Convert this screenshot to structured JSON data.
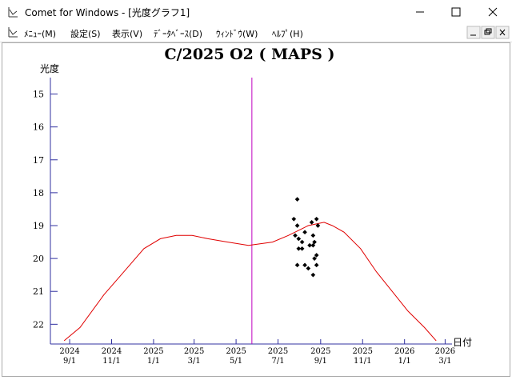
{
  "window": {
    "title": "Comet for Windows - [光度グラフ1]"
  },
  "menu": [
    "ﾒﾆｭｰ(M)",
    "設定(S)",
    "表示(V)",
    "ﾃﾞｰﾀﾍﾞｰｽ(D)",
    "ｳｨﾝﾄﾞｳ(W)",
    "ﾍﾙﾌﾟ(H)"
  ],
  "chart_data": {
    "type": "line",
    "title": "C/2025 O2 ( MAPS )",
    "y_label": "光度",
    "x_label": "日付",
    "xlim": [
      "2024-08-04",
      "2026-03-11"
    ],
    "ylim": [
      22.6,
      14.5
    ],
    "yticks": [
      15,
      16,
      17,
      18,
      19,
      20,
      21,
      22
    ],
    "xticks": [
      {
        "value": "2024-09-01",
        "label": [
          "2024",
          "9/1"
        ]
      },
      {
        "value": "2024-11-01",
        "label": [
          "2024",
          "11/1"
        ]
      },
      {
        "value": "2025-01-01",
        "label": [
          "2025",
          "1/1"
        ]
      },
      {
        "value": "2025-03-01",
        "label": [
          "2025",
          "3/1"
        ]
      },
      {
        "value": "2025-05-01",
        "label": [
          "2025",
          "5/1"
        ]
      },
      {
        "value": "2025-07-01",
        "label": [
          "2025",
          "7/1"
        ]
      },
      {
        "value": "2025-09-01",
        "label": [
          "2025",
          "9/1"
        ]
      },
      {
        "value": "2025-11-01",
        "label": [
          "2025",
          "11/1"
        ]
      },
      {
        "value": "2026-01-01",
        "label": [
          "2026",
          "1/1"
        ]
      },
      {
        "value": "2026-03-01",
        "label": [
          "2026",
          "3/1"
        ]
      }
    ],
    "current_date": "2025-05-24",
    "current_color": "#c000c0",
    "series": [
      {
        "type": "line",
        "color": "#e00000",
        "x": [
          "2024-08-24",
          "2024-09-16",
          "2024-10-21",
          "2024-11-19",
          "2024-12-18",
          "2025-01-11",
          "2025-02-03",
          "2025-02-26",
          "2025-03-21",
          "2025-04-19",
          "2025-05-19",
          "2025-06-23",
          "2025-07-16",
          "2025-08-14",
          "2025-09-06",
          "2025-09-18",
          "2025-10-05",
          "2025-10-29",
          "2025-11-21",
          "2025-12-14",
          "2026-01-06",
          "2026-01-30",
          "2026-02-16"
        ],
        "values": [
          22.5,
          22.1,
          21.1,
          20.4,
          19.7,
          19.4,
          19.3,
          19.3,
          19.4,
          19.5,
          19.6,
          19.5,
          19.3,
          19.0,
          18.9,
          19.0,
          19.2,
          19.7,
          20.4,
          21.0,
          21.6,
          22.1,
          22.5
        ]
      },
      {
        "type": "scatter",
        "color": "#000000",
        "x": [
          "2025-07-29",
          "2025-07-24",
          "2025-07-29",
          "2025-07-26",
          "2025-07-31",
          "2025-08-05",
          "2025-08-09",
          "2025-07-31",
          "2025-08-05",
          "2025-08-16",
          "2025-08-21",
          "2025-08-19",
          "2025-08-26",
          "2025-08-28",
          "2025-08-21",
          "2025-08-23",
          "2025-08-26",
          "2025-08-23",
          "2025-07-29",
          "2025-08-09",
          "2025-08-14",
          "2025-08-26",
          "2025-08-21"
        ],
        "values": [
          18.2,
          18.8,
          19.0,
          19.3,
          19.4,
          19.5,
          19.2,
          19.7,
          19.7,
          19.6,
          19.6,
          18.9,
          18.8,
          19.0,
          19.3,
          19.5,
          19.9,
          20.0,
          20.2,
          20.2,
          20.3,
          20.2,
          20.5
        ]
      }
    ]
  }
}
